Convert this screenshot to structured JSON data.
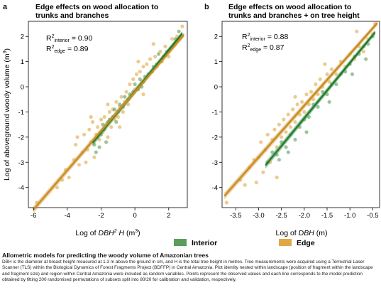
{
  "colors": {
    "interior": "#5a9e5a",
    "edge": "#e0a845",
    "interior_line": "#1e7a2a",
    "edge_line": "#c98a1c",
    "title": "#555555"
  },
  "panels": [
    {
      "letter": "a",
      "title_line1": "Edge effects on wood allocation to",
      "title_line2": "trunks and branches",
      "r2_interior_pre": "R",
      "r2_interior_sup": "2",
      "r2_interior_sub": "interior",
      "r2_interior_val": " = 0.90",
      "r2_edge_pre": "R",
      "r2_edge_sup": "2",
      "r2_edge_sub": "edge",
      "r2_edge_val": " = 0.89",
      "xlabel_pre": "Log of ",
      "xlabel_var": "DBH",
      "xlabel_sup": "2",
      "xlabel_var2": " H",
      "xlabel_unit": " (m",
      "xlabel_unit_sup": "3",
      "xlabel_close": ")",
      "xticks": [
        "-6",
        "-4",
        "-2",
        "0",
        "2"
      ],
      "yticks": [
        "-4",
        "-3",
        "-2",
        "-1",
        "0",
        "1",
        "2"
      ]
    },
    {
      "letter": "b",
      "title_line1": "Edge effects on wood allocation to",
      "title_line2": "trunks and branches + on tree height",
      "r2_interior_pre": "R",
      "r2_interior_sup": "2",
      "r2_interior_sub": "interior",
      "r2_interior_val": " = 0.88",
      "r2_edge_pre": "R",
      "r2_edge_sup": "2",
      "r2_edge_sub": "edge",
      "r2_edge_val": " = 0.87",
      "xlabel_pre": "Log of ",
      "xlabel_var": "DBH",
      "xlabel_unit": " (m)",
      "xticks": [
        "-3.5",
        "-3.0",
        "-2.5",
        "-2.0",
        "-1.5",
        "-1.0",
        "-0.5"
      ],
      "yticks": [
        "-4",
        "-3",
        "-2",
        "-1",
        "0",
        "1",
        "2"
      ]
    }
  ],
  "ylabel_pre": "Log of aboveground woody volume (m",
  "ylabel_sup": "3",
  "ylabel_close": ")",
  "legend": {
    "interior": "Interior",
    "edge": "Edge"
  },
  "caption": {
    "title": "Allometric models for predicting the woody volume of Amazonian trees",
    "body": "DBH is the diameter at breast height measured at 1.3 m above the ground in cm, and H is the total tree height in metres. Tree measurements were acquired using a Terrestrial Laser Scanner (TLS) within the Biological Dynamics of Forest Fragments Project (BDFFP) in Central Amazonia. Plot identity nested within landscape (position of fragment within the landscape and fragment size) and region within Central Amazonia were included as random variables. Points represent the observed values and each line corresponds to the model prediction obtained by fitting 200 randomised permutations of subsets split into 80/20 for calibration and validation, respectively."
  },
  "chart_data": [
    {
      "type": "scatter",
      "title": "Edge effects on wood allocation to trunks and branches",
      "xlabel": "Log of DBH^2 H (m^3)",
      "ylabel": "Log of aboveground woody volume (m^3)",
      "xlim": [
        -6.3,
        3.1
      ],
      "ylim": [
        -4.8,
        2.6
      ],
      "grid": false,
      "legend": "bottom",
      "series": [
        {
          "name": "Interior",
          "fit": {
            "x": [
              -2.5,
              2.8
            ],
            "intercept": -0.18,
            "slope": 0.82
          },
          "r2": 0.9,
          "points": [
            [
              -2.4,
              -2.3
            ],
            [
              -2.2,
              -2.0
            ],
            [
              -2.0,
              -1.9
            ],
            [
              -1.9,
              -1.5
            ],
            [
              -1.8,
              -1.7
            ],
            [
              -1.6,
              -1.4
            ],
            [
              -1.5,
              -1.3
            ],
            [
              -1.3,
              -1.2
            ],
            [
              -1.2,
              -0.9
            ],
            [
              -1.0,
              -1.0
            ],
            [
              -0.9,
              -0.7
            ],
            [
              -0.7,
              -0.8
            ],
            [
              -0.6,
              -0.4
            ],
            [
              -0.4,
              -0.5
            ],
            [
              -0.3,
              -0.3
            ],
            [
              -0.1,
              -0.2
            ],
            [
              0.0,
              0.1
            ],
            [
              0.2,
              -0.1
            ],
            [
              0.3,
              0.3
            ],
            [
              0.5,
              0.2
            ],
            [
              0.6,
              0.4
            ],
            [
              0.8,
              0.5
            ],
            [
              1.0,
              0.6
            ],
            [
              1.1,
              0.8
            ],
            [
              1.3,
              0.9
            ],
            [
              1.5,
              1.0
            ],
            [
              1.7,
              1.2
            ],
            [
              1.9,
              1.4
            ],
            [
              2.1,
              1.5
            ],
            [
              2.4,
              1.9
            ],
            [
              -1.1,
              -1.4
            ],
            [
              0.4,
              0.0
            ],
            [
              1.4,
              1.3
            ],
            [
              -2.1,
              -2.4
            ],
            [
              -1.7,
              -2.2
            ],
            [
              -2.3,
              -2.6
            ],
            [
              2.6,
              2.2
            ]
          ]
        },
        {
          "name": "Edge",
          "fit": {
            "x": [
              -6.0,
              2.9
            ],
            "intercept": -0.2,
            "slope": 0.78
          },
          "r2": 0.89,
          "points": [
            [
              -5.8,
              -4.6
            ],
            [
              -4.6,
              -4.0
            ],
            [
              -4.3,
              -3.7
            ],
            [
              -4.1,
              -3.3
            ],
            [
              -3.9,
              -3.6
            ],
            [
              -3.6,
              -2.9
            ],
            [
              -3.5,
              -2.3
            ],
            [
              -3.3,
              -3.1
            ],
            [
              -3.1,
              -2.6
            ],
            [
              -3.0,
              -1.9
            ],
            [
              -2.8,
              -2.5
            ],
            [
              -2.7,
              -1.7
            ],
            [
              -2.6,
              -2.2
            ],
            [
              -2.5,
              -1.4
            ],
            [
              -2.4,
              -2.8
            ],
            [
              -2.3,
              -1.9
            ],
            [
              -2.2,
              -1.6
            ],
            [
              -2.1,
              -2.1
            ],
            [
              -2.0,
              -1.3
            ],
            [
              -1.9,
              -1.8
            ],
            [
              -1.8,
              -1.2
            ],
            [
              -1.7,
              -1.5
            ],
            [
              -1.6,
              -2.0
            ],
            [
              -1.5,
              -1.0
            ],
            [
              -1.4,
              -1.6
            ],
            [
              -1.3,
              -0.9
            ],
            [
              -1.2,
              -1.3
            ],
            [
              -1.1,
              -0.6
            ],
            [
              -1.0,
              -1.2
            ],
            [
              -0.9,
              -0.8
            ],
            [
              -0.8,
              -0.4
            ],
            [
              -0.7,
              -1.0
            ],
            [
              -0.6,
              -0.6
            ],
            [
              -0.5,
              -0.2
            ],
            [
              -0.4,
              -0.7
            ],
            [
              -0.3,
              0.1
            ],
            [
              -0.2,
              -0.3
            ],
            [
              -0.1,
              0.3
            ],
            [
              0.0,
              -0.1
            ],
            [
              0.1,
              0.5
            ],
            [
              0.2,
              0.0
            ],
            [
              0.3,
              0.6
            ],
            [
              0.4,
              0.2
            ],
            [
              0.5,
              0.8
            ],
            [
              0.6,
              0.3
            ],
            [
              0.7,
              0.9
            ],
            [
              0.8,
              0.5
            ],
            [
              0.9,
              1.1
            ],
            [
              1.0,
              0.6
            ],
            [
              1.2,
              1.2
            ],
            [
              1.3,
              0.8
            ],
            [
              1.5,
              1.4
            ],
            [
              1.6,
              1.0
            ],
            [
              1.8,
              1.6
            ],
            [
              2.0,
              1.2
            ],
            [
              2.2,
              1.9
            ],
            [
              2.5,
              2.0
            ],
            [
              2.8,
              2.4
            ],
            [
              -3.4,
              -2.0
            ],
            [
              -2.9,
              -3.0
            ],
            [
              -1.6,
              -0.7
            ],
            [
              0.5,
              -0.3
            ],
            [
              1.1,
              1.7
            ],
            [
              -2.6,
              -1.2
            ],
            [
              -0.9,
              -1.6
            ],
            [
              0.2,
              1.0
            ]
          ]
        }
      ]
    },
    {
      "type": "scatter",
      "title": "Edge effects on wood allocation to trunks and branches + on tree height",
      "xlabel": "Log of DBH (m)",
      "ylabel": "Log of aboveground woody volume (m^3)",
      "xlim": [
        -3.8,
        -0.35
      ],
      "ylim": [
        -4.8,
        2.6
      ],
      "grid": false,
      "legend": "bottom",
      "series": [
        {
          "name": "Interior",
          "fit": {
            "x": [
              -2.85,
              -0.45
            ],
            "intercept": 3.15,
            "slope": 2.2
          },
          "r2": 0.88,
          "points": [
            [
              -2.8,
              -3.0
            ],
            [
              -2.7,
              -2.6
            ],
            [
              -2.6,
              -2.7
            ],
            [
              -2.5,
              -2.2
            ],
            [
              -2.4,
              -2.4
            ],
            [
              -2.3,
              -1.9
            ],
            [
              -2.2,
              -2.1
            ],
            [
              -2.1,
              -1.6
            ],
            [
              -2.0,
              -1.3
            ],
            [
              -1.9,
              -1.2
            ],
            [
              -1.8,
              -0.7
            ],
            [
              -1.7,
              -0.8
            ],
            [
              -1.6,
              -0.2
            ],
            [
              -1.5,
              -0.3
            ],
            [
              -1.4,
              0.1
            ],
            [
              -1.3,
              0.1
            ],
            [
              -1.2,
              0.5
            ],
            [
              -1.1,
              0.6
            ],
            [
              -1.0,
              0.9
            ],
            [
              -0.9,
              1.2
            ],
            [
              -0.8,
              1.3
            ],
            [
              -0.7,
              1.6
            ],
            [
              -0.6,
              1.7
            ],
            [
              -0.5,
              2.0
            ],
            [
              -2.55,
              -2.9
            ],
            [
              -2.35,
              -2.6
            ],
            [
              -1.95,
              -1.8
            ],
            [
              -1.45,
              -0.6
            ],
            [
              -0.95,
              0.5
            ],
            [
              -0.65,
              1.1
            ]
          ]
        },
        {
          "name": "Edge",
          "fit": {
            "x": [
              -3.75,
              -0.4
            ],
            "intercept": 3.35,
            "slope": 2.05
          },
          "r2": 0.87,
          "points": [
            [
              -3.7,
              -4.6
            ],
            [
              -3.4,
              -3.7
            ],
            [
              -3.2,
              -3.2
            ],
            [
              -3.1,
              -2.9
            ],
            [
              -3.0,
              -2.8
            ],
            [
              -2.95,
              -2.2
            ],
            [
              -2.9,
              -3.4
            ],
            [
              -2.85,
              -2.5
            ],
            [
              -2.8,
              -1.9
            ],
            [
              -2.75,
              -3.0
            ],
            [
              -2.7,
              -2.1
            ],
            [
              -2.65,
              -1.7
            ],
            [
              -2.6,
              -2.4
            ],
            [
              -2.55,
              -1.5
            ],
            [
              -2.5,
              -2.0
            ],
            [
              -2.45,
              -1.3
            ],
            [
              -2.4,
              -1.8
            ],
            [
              -2.35,
              -1.1
            ],
            [
              -2.3,
              -1.6
            ],
            [
              -2.25,
              -0.9
            ],
            [
              -2.2,
              -1.4
            ],
            [
              -2.15,
              -0.7
            ],
            [
              -2.1,
              -1.1
            ],
            [
              -2.05,
              -0.6
            ],
            [
              -2.0,
              -1.0
            ],
            [
              -1.95,
              -0.3
            ],
            [
              -1.9,
              -0.7
            ],
            [
              -1.85,
              -0.2
            ],
            [
              -1.8,
              -0.5
            ],
            [
              -1.75,
              0.1
            ],
            [
              -1.7,
              -0.3
            ],
            [
              -1.65,
              0.3
            ],
            [
              -1.6,
              0.0
            ],
            [
              -1.5,
              0.5
            ],
            [
              -1.45,
              0.2
            ],
            [
              -1.4,
              0.7
            ],
            [
              -1.3,
              0.5
            ],
            [
              -1.2,
              1.0
            ],
            [
              -1.1,
              0.8
            ],
            [
              -1.0,
              1.3
            ],
            [
              -0.9,
              1.1
            ],
            [
              -0.8,
              1.6
            ],
            [
              -0.7,
              1.4
            ],
            [
              -0.6,
              1.9
            ],
            [
              -0.5,
              2.1
            ],
            [
              -0.45,
              2.5
            ],
            [
              -3.3,
              -3.9
            ],
            [
              -3.05,
              -3.8
            ],
            [
              -2.6,
              -3.6
            ],
            [
              -1.55,
              0.9
            ],
            [
              -2.2,
              -0.4
            ],
            [
              -0.85,
              2.2
            ]
          ]
        }
      ]
    }
  ]
}
